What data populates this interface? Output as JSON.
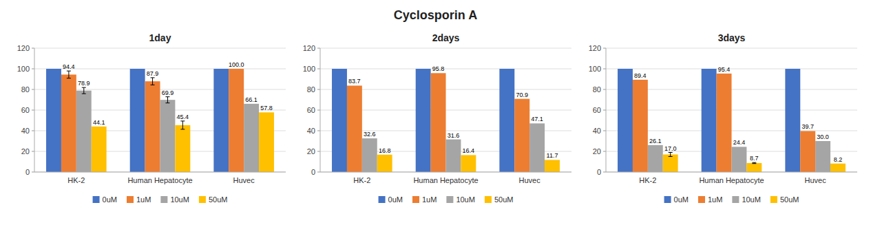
{
  "title": "Cyclosporin A",
  "chart_data": [
    {
      "type": "bar",
      "title": "1day",
      "categories": [
        "HK-2",
        "Human Hepatocyte",
        "Huvec"
      ],
      "series": [
        {
          "name": "0uM",
          "color": "#4472C4",
          "values": [
            100.0,
            100.0,
            100.0
          ],
          "errors": [
            0,
            0,
            0
          ],
          "data_labels": false
        },
        {
          "name": "1uM",
          "color": "#ED7D31",
          "values": [
            94.4,
            87.9,
            100.0
          ],
          "value_labels": [
            "94.4",
            "87.9",
            "100.0"
          ],
          "errors": [
            3.5,
            3.5,
            0
          ],
          "data_labels": true
        },
        {
          "name": "10uM",
          "color": "#A5A5A5",
          "values": [
            78.9,
            69.9,
            66.1
          ],
          "errors": [
            3.0,
            3.0,
            0
          ],
          "data_labels": true
        },
        {
          "name": "50uM",
          "color": "#FFC000",
          "values": [
            44.1,
            45.4,
            57.8
          ],
          "errors": [
            0,
            4.0,
            0
          ],
          "data_labels": true
        }
      ],
      "ylim": [
        0,
        120
      ],
      "yticks": [
        0,
        20,
        40,
        60,
        80,
        100,
        120
      ],
      "grid": true,
      "legend": "bottom"
    },
    {
      "type": "bar",
      "title": "2days",
      "categories": [
        "HK-2",
        "Human Hepatocyte",
        "Huvec"
      ],
      "series": [
        {
          "name": "0uM",
          "color": "#4472C4",
          "values": [
            100.0,
            100.0,
            100.0
          ],
          "errors": [
            0,
            0,
            0
          ],
          "data_labels": false
        },
        {
          "name": "1uM",
          "color": "#ED7D31",
          "values": [
            83.7,
            95.8,
            70.9
          ],
          "errors": [
            0,
            0,
            0
          ],
          "data_labels": true
        },
        {
          "name": "10uM",
          "color": "#A5A5A5",
          "values": [
            32.6,
            31.6,
            47.1
          ],
          "errors": [
            0,
            0,
            0
          ],
          "data_labels": true
        },
        {
          "name": "50uM",
          "color": "#FFC000",
          "values": [
            16.8,
            16.4,
            11.7
          ],
          "errors": [
            0,
            0,
            0
          ],
          "data_labels": true
        }
      ],
      "ylim": [
        0,
        120
      ],
      "yticks": [
        0,
        20,
        40,
        60,
        80,
        100,
        120
      ],
      "grid": true,
      "legend": "bottom"
    },
    {
      "type": "bar",
      "title": "3days",
      "categories": [
        "HK-2",
        "Human Hepatocyte",
        "Huvec"
      ],
      "series": [
        {
          "name": "0uM",
          "color": "#4472C4",
          "values": [
            100.0,
            100.0,
            100.0
          ],
          "errors": [
            0,
            0,
            0
          ],
          "data_labels": false
        },
        {
          "name": "1uM",
          "color": "#ED7D31",
          "values": [
            89.4,
            95.4,
            39.7
          ],
          "errors": [
            0,
            0,
            0
          ],
          "data_labels": true
        },
        {
          "name": "10uM",
          "color": "#A5A5A5",
          "values": [
            26.1,
            24.4,
            30.0
          ],
          "value_labels": [
            "26.1",
            "24.4",
            "30.0"
          ],
          "errors": [
            0,
            0,
            0
          ],
          "data_labels": true
        },
        {
          "name": "50uM",
          "color": "#FFC000",
          "values": [
            17.0,
            8.7,
            8.2
          ],
          "value_labels": [
            "17.0",
            "8.7",
            "8.2"
          ],
          "errors": [
            2.0,
            0.5,
            0
          ],
          "data_labels": true
        }
      ],
      "ylim": [
        0,
        120
      ],
      "yticks": [
        0,
        20,
        40,
        60,
        80,
        100,
        120
      ],
      "grid": true,
      "legend": "bottom"
    }
  ]
}
